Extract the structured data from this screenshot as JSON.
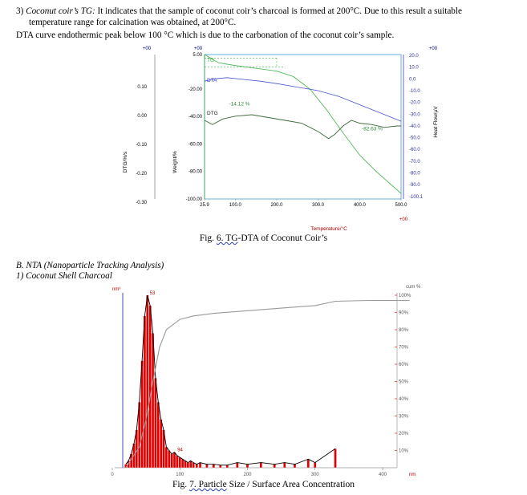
{
  "text": {
    "p1_num": "3)",
    "p1_term": "Coconut coir’s TG:",
    "p1_body": " It indicates that the sample of coconut coir’s charcoal is formed at 200°C. Due to this result a suitable",
    "p1_line2": "temperature range for calcination was obtained, at 200°C.",
    "p2": "DTA curve endothermic peak below 100 °C which is due to the carbonation of the coconut coir’s sample.",
    "fig6_prefix": "Fig.",
    "fig6_num_tg": "6. TG",
    "fig6_rest": "-DTA of Coconut Coir’s",
    "secB": "B.  NTA (Nanoparticle Tracking Analysis)",
    "sec1": "1)   Coconut Shell Charcoal",
    "fig7_prefix": "Fig.",
    "fig7_num_particle": "7. Particle",
    "fig7_rest": " Size / Surface Area Concentration"
  },
  "chart_data": [
    {
      "type": "line",
      "axes": {
        "dtg_axis": {
          "label": "DTG/%/s",
          "top_tick": "+00",
          "ticks": [
            "0.10",
            "0.00",
            "-0.10",
            "-0.20",
            "-0.30"
          ]
        },
        "weight_axis": {
          "label": "Weight/%",
          "top_tick": "+00",
          "ticks": [
            "5.00",
            "-20.00",
            "-40.00",
            "-60.00",
            "-80.00",
            "-100.00"
          ]
        },
        "heat_axis": {
          "label": "Heat Flow/µV",
          "top_tick": "+00",
          "ticks": [
            "20.0",
            "10.0",
            "0.0",
            "-10.0",
            "-20.0",
            "-30.0",
            "-40.0",
            "-50.0",
            "-60.0",
            "-70.0",
            "-80.0",
            "-90.0",
            "-100.1"
          ]
        },
        "x_axis": {
          "label": "Temperature/°C",
          "bottom_tick": "+00",
          "ticks": [
            "25.9",
            "100.0",
            "200.0",
            "300.0",
            "400.0",
            "500.0"
          ],
          "range": [
            25.9,
            500
          ]
        }
      },
      "series": [
        {
          "name": "TG",
          "color": "#3cb043",
          "x": [
            25.9,
            60,
            100,
            150,
            200,
            240,
            280,
            320,
            360,
            400,
            440,
            470,
            500
          ],
          "y": [
            5,
            -1,
            -3,
            -5,
            -7,
            -11,
            -20,
            -35,
            -52,
            -68,
            -80,
            -88,
            -96
          ]
        },
        {
          "name": "DTA",
          "color": "#4a53d6",
          "x": [
            25.9,
            50,
            80,
            120,
            160,
            200,
            250,
            300,
            350,
            400,
            450,
            500
          ],
          "y": [
            -2,
            0,
            1,
            -0.5,
            -2,
            -4,
            -7,
            -10,
            -15,
            -22,
            -29,
            -36
          ]
        },
        {
          "name": "DTG",
          "color": "#3a6b3a",
          "x": [
            25.9,
            45,
            70,
            100,
            140,
            180,
            220,
            260,
            300,
            325,
            340,
            360,
            380,
            400,
            430,
            460,
            490,
            500
          ],
          "y": [
            -0.02,
            -0.035,
            -0.015,
            -0.005,
            0.0,
            -0.01,
            -0.02,
            -0.03,
            -0.06,
            -0.085,
            -0.07,
            -0.04,
            -0.02,
            -0.03,
            -0.035,
            -0.045,
            -0.04,
            -0.04
          ]
        }
      ],
      "annotations": [
        "-14.12 %",
        "-82.63 %"
      ]
    },
    {
      "type": "bar",
      "y_axis_label": "nm³",
      "right_axis": {
        "label": "cum %",
        "ticks": [
          "100%",
          "90%",
          "80%",
          "70%",
          "60%",
          "50%",
          "40%",
          "30%",
          "20%",
          "10%"
        ]
      },
      "x_axis": {
        "ticks": [
          "0",
          "100",
          "200",
          "300",
          "400"
        ],
        "unit": "nm",
        "range": [
          0,
          440
        ]
      },
      "peak_labels": [
        {
          "x": 53,
          "label": "53"
        },
        {
          "x": 94,
          "label": "94"
        }
      ],
      "bars_x": [
        20,
        24,
        28,
        32,
        36,
        40,
        44,
        48,
        52,
        56,
        60,
        64,
        68,
        72,
        76,
        80,
        84,
        88,
        92,
        96,
        100,
        104,
        108,
        112,
        116,
        120,
        125,
        130,
        140,
        150,
        160,
        170,
        185,
        200,
        220,
        240,
        255,
        270,
        290,
        300,
        330
      ],
      "bars_y": [
        2,
        4,
        8,
        14,
        22,
        38,
        62,
        88,
        100,
        94,
        78,
        52,
        38,
        28,
        22,
        12,
        10,
        8,
        9,
        7,
        6,
        5,
        4,
        3,
        4,
        3,
        2,
        3,
        2,
        2,
        1.5,
        1.5,
        3,
        2,
        3,
        2,
        3,
        2,
        5,
        3,
        11
      ],
      "cumulative_x": [
        20,
        40,
        50,
        60,
        70,
        80,
        100,
        120,
        150,
        200,
        250,
        300,
        330,
        380,
        440
      ],
      "cumulative_y": [
        0,
        12,
        28,
        50,
        70,
        80,
        86,
        88,
        89.5,
        91,
        92.5,
        94,
        96.5,
        97,
        97
      ],
      "colors": {
        "bars": "#e00000",
        "fit": "#000000",
        "cumulative": "#999999",
        "axis": "#4a4fb5"
      }
    }
  ]
}
